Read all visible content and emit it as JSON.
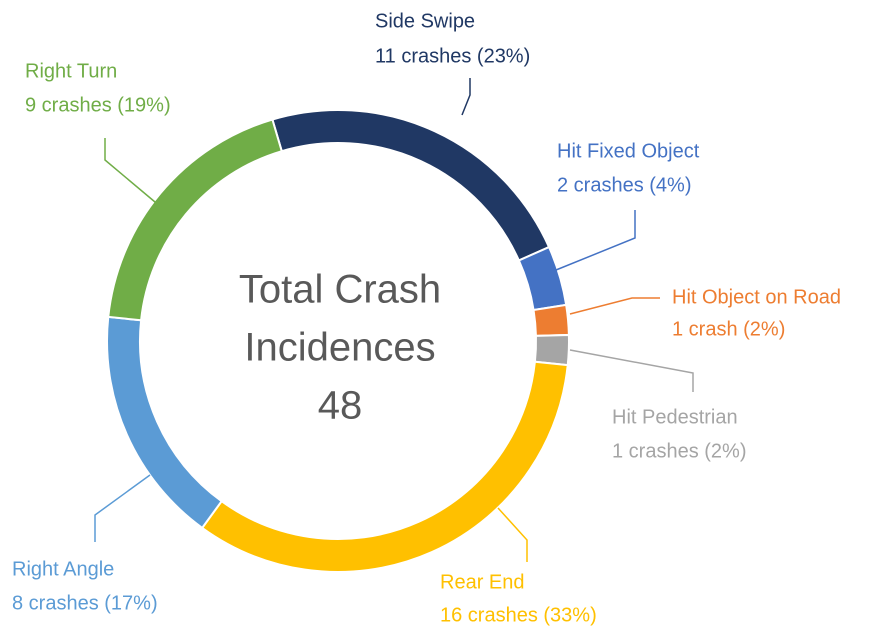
{
  "chart_data": {
    "type": "donut",
    "center_label": [
      "Total Crash",
      "Incidences"
    ],
    "total": 48,
    "categories": [
      "Side Swipe",
      "Hit Fixed Object",
      "Hit Object on Road",
      "Hit Pedestrian",
      "Rear End",
      "Right Angle",
      "Right Turn"
    ],
    "values": [
      11,
      2,
      1,
      1,
      16,
      8,
      9
    ],
    "value_labels": [
      "11 crashes (23%)",
      "2 crashes (4%)",
      "1 crash (2%)",
      "1 crashes (2%)",
      "16 crashes (33%)",
      "8 crashes (17%)",
      "9 crashes (19%)"
    ],
    "colors": [
      "#203864",
      "#4472c4",
      "#ed7d31",
      "#a5a5a5",
      "#ffc000",
      "#5b9bd5",
      "#70ad47"
    ]
  }
}
